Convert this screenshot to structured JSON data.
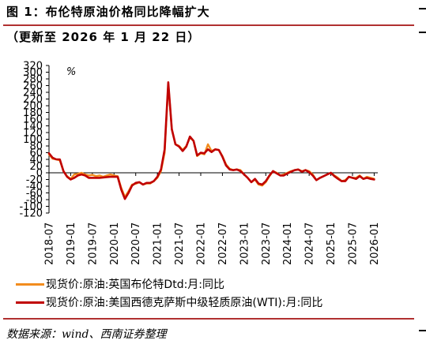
{
  "header": {
    "title": "图 1：布伦特原油价格同比降幅扩大",
    "subtitle": "（更新至 2026 年 1 月 22 日）"
  },
  "footer": {
    "source": "数据来源：wind、西南证券整理"
  },
  "chart_data": {
    "type": "line",
    "unit_label": "%",
    "ylim": [
      -120,
      320
    ],
    "yticks": [
      -120,
      -100,
      -80,
      -60,
      -40,
      -20,
      0,
      20,
      40,
      60,
      80,
      100,
      120,
      140,
      160,
      180,
      200,
      220,
      240,
      260,
      280,
      300,
      320
    ],
    "xlim": [
      "2018-07",
      "2026-02"
    ],
    "xticks": [
      "2018-07",
      "2019-01",
      "2019-07",
      "2020-01",
      "2020-07",
      "2021-01",
      "2021-07",
      "2022-01",
      "2022-07",
      "2023-01",
      "2023-07",
      "2024-01",
      "2024-07",
      "2025-01",
      "2025-07",
      "2026-01"
    ],
    "grid": false,
    "legend_position": "bottom",
    "series": [
      {
        "name": "现货价:原油:英国布伦特Dtd:月:同比",
        "color": "#f28c1e",
        "points": [
          [
            "2018-07",
            55
          ],
          [
            "2018-08",
            42
          ],
          [
            "2018-09",
            40
          ],
          [
            "2018-10",
            37
          ],
          [
            "2018-11",
            5
          ],
          [
            "2018-12",
            -10
          ],
          [
            "2019-01",
            -18
          ],
          [
            "2019-02",
            -5
          ],
          [
            "2019-03",
            -3
          ],
          [
            "2019-04",
            0
          ],
          [
            "2019-05",
            -5
          ],
          [
            "2019-06",
            -8
          ],
          [
            "2019-07",
            -6
          ],
          [
            "2019-08",
            -10
          ],
          [
            "2019-09",
            -8
          ],
          [
            "2019-10",
            -12
          ],
          [
            "2019-11",
            -8
          ],
          [
            "2019-12",
            -5
          ],
          [
            "2020-01",
            -8
          ],
          [
            "2020-02",
            -10
          ],
          [
            "2020-03",
            -45
          ],
          [
            "2020-04",
            -72
          ],
          [
            "2020-05",
            -55
          ],
          [
            "2020-06",
            -35
          ],
          [
            "2020-07",
            -33
          ],
          [
            "2020-08",
            -28
          ],
          [
            "2020-09",
            -35
          ],
          [
            "2020-10",
            -32
          ],
          [
            "2020-11",
            -32
          ],
          [
            "2020-12",
            -25
          ],
          [
            "2021-01",
            -15
          ],
          [
            "2021-02",
            5
          ],
          [
            "2021-03",
            60
          ],
          [
            "2021-04",
            265
          ],
          [
            "2021-05",
            130
          ],
          [
            "2021-06",
            85
          ],
          [
            "2021-07",
            80
          ],
          [
            "2021-08",
            68
          ],
          [
            "2021-09",
            80
          ],
          [
            "2021-10",
            105
          ],
          [
            "2021-11",
            95
          ],
          [
            "2021-12",
            50
          ],
          [
            "2022-01",
            58
          ],
          [
            "2022-02",
            55
          ],
          [
            "2022-03",
            85
          ],
          [
            "2022-04",
            65
          ],
          [
            "2022-05",
            70
          ],
          [
            "2022-06",
            68
          ],
          [
            "2022-07",
            50
          ],
          [
            "2022-08",
            25
          ],
          [
            "2022-09",
            12
          ],
          [
            "2022-10",
            8
          ],
          [
            "2022-11",
            10
          ],
          [
            "2022-12",
            8
          ],
          [
            "2023-01",
            -5
          ],
          [
            "2023-02",
            -15
          ],
          [
            "2023-03",
            -28
          ],
          [
            "2023-04",
            -20
          ],
          [
            "2023-05",
            -35
          ],
          [
            "2023-06",
            -38
          ],
          [
            "2023-07",
            -28
          ],
          [
            "2023-08",
            -10
          ],
          [
            "2023-09",
            5
          ],
          [
            "2023-10",
            0
          ],
          [
            "2023-11",
            -8
          ],
          [
            "2023-12",
            -5
          ],
          [
            "2024-01",
            0
          ],
          [
            "2024-02",
            5
          ],
          [
            "2024-03",
            8
          ],
          [
            "2024-04",
            10
          ],
          [
            "2024-05",
            5
          ],
          [
            "2024-06",
            8
          ],
          [
            "2024-07",
            5
          ],
          [
            "2024-08",
            -5
          ],
          [
            "2024-09",
            -22
          ],
          [
            "2024-10",
            -15
          ],
          [
            "2024-11",
            -10
          ],
          [
            "2024-12",
            -5
          ],
          [
            "2025-01",
            0
          ],
          [
            "2025-02",
            -8
          ],
          [
            "2025-03",
            -15
          ],
          [
            "2025-04",
            -25
          ],
          [
            "2025-05",
            -22
          ],
          [
            "2025-06",
            -12
          ],
          [
            "2025-07",
            -15
          ],
          [
            "2025-08",
            -15
          ],
          [
            "2025-09",
            -8
          ],
          [
            "2025-10",
            -18
          ],
          [
            "2025-11",
            -12
          ],
          [
            "2025-12",
            -15
          ],
          [
            "2026-01",
            -18
          ]
        ]
      },
      {
        "name": "现货价:原油:美国西德克萨斯中级轻质原油(WTI):月:同比",
        "color": "#c00000",
        "points": [
          [
            "2018-07",
            58
          ],
          [
            "2018-08",
            45
          ],
          [
            "2018-09",
            40
          ],
          [
            "2018-10",
            40
          ],
          [
            "2018-11",
            5
          ],
          [
            "2018-12",
            -12
          ],
          [
            "2019-01",
            -20
          ],
          [
            "2019-02",
            -15
          ],
          [
            "2019-03",
            -8
          ],
          [
            "2019-04",
            -5
          ],
          [
            "2019-05",
            -8
          ],
          [
            "2019-06",
            -15
          ],
          [
            "2019-07",
            -15
          ],
          [
            "2019-08",
            -15
          ],
          [
            "2019-09",
            -15
          ],
          [
            "2019-10",
            -14
          ],
          [
            "2019-11",
            -13
          ],
          [
            "2019-12",
            -12
          ],
          [
            "2020-01",
            -12
          ],
          [
            "2020-02",
            -12
          ],
          [
            "2020-03",
            -50
          ],
          [
            "2020-04",
            -78
          ],
          [
            "2020-05",
            -60
          ],
          [
            "2020-06",
            -38
          ],
          [
            "2020-07",
            -30
          ],
          [
            "2020-08",
            -28
          ],
          [
            "2020-09",
            -35
          ],
          [
            "2020-10",
            -30
          ],
          [
            "2020-11",
            -30
          ],
          [
            "2020-12",
            -25
          ],
          [
            "2021-01",
            -12
          ],
          [
            "2021-02",
            10
          ],
          [
            "2021-03",
            70
          ],
          [
            "2021-04",
            270
          ],
          [
            "2021-05",
            130
          ],
          [
            "2021-06",
            85
          ],
          [
            "2021-07",
            78
          ],
          [
            "2021-08",
            65
          ],
          [
            "2021-09",
            78
          ],
          [
            "2021-10",
            108
          ],
          [
            "2021-11",
            95
          ],
          [
            "2021-12",
            52
          ],
          [
            "2022-01",
            60
          ],
          [
            "2022-02",
            58
          ],
          [
            "2022-03",
            70
          ],
          [
            "2022-04",
            62
          ],
          [
            "2022-05",
            70
          ],
          [
            "2022-06",
            68
          ],
          [
            "2022-07",
            48
          ],
          [
            "2022-08",
            22
          ],
          [
            "2022-09",
            10
          ],
          [
            "2022-10",
            8
          ],
          [
            "2022-11",
            10
          ],
          [
            "2022-12",
            5
          ],
          [
            "2023-01",
            -5
          ],
          [
            "2023-02",
            -15
          ],
          [
            "2023-03",
            -28
          ],
          [
            "2023-04",
            -18
          ],
          [
            "2023-05",
            -32
          ],
          [
            "2023-06",
            -35
          ],
          [
            "2023-07",
            -25
          ],
          [
            "2023-08",
            -8
          ],
          [
            "2023-09",
            5
          ],
          [
            "2023-10",
            -2
          ],
          [
            "2023-11",
            -8
          ],
          [
            "2023-12",
            -8
          ],
          [
            "2024-01",
            -2
          ],
          [
            "2024-02",
            3
          ],
          [
            "2024-03",
            8
          ],
          [
            "2024-04",
            10
          ],
          [
            "2024-05",
            3
          ],
          [
            "2024-06",
            8
          ],
          [
            "2024-07",
            2
          ],
          [
            "2024-08",
            -8
          ],
          [
            "2024-09",
            -22
          ],
          [
            "2024-10",
            -15
          ],
          [
            "2024-11",
            -10
          ],
          [
            "2024-12",
            -5
          ],
          [
            "2025-01",
            0
          ],
          [
            "2025-02",
            -10
          ],
          [
            "2025-03",
            -18
          ],
          [
            "2025-04",
            -25
          ],
          [
            "2025-05",
            -25
          ],
          [
            "2025-06",
            -12
          ],
          [
            "2025-07",
            -15
          ],
          [
            "2025-08",
            -18
          ],
          [
            "2025-09",
            -10
          ],
          [
            "2025-10",
            -18
          ],
          [
            "2025-11",
            -15
          ],
          [
            "2025-12",
            -18
          ],
          [
            "2026-01",
            -20
          ]
        ]
      }
    ]
  }
}
